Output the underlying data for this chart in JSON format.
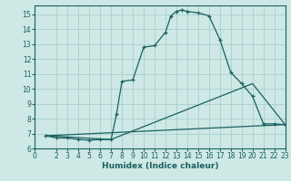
{
  "title": "",
  "xlabel": "Humidex (Indice chaleur)",
  "bg_color": "#cde8e5",
  "grid_color": "#a8d0cd",
  "line_color": "#1a6060",
  "xlim": [
    0,
    23
  ],
  "ylim": [
    6,
    15.6
  ],
  "xticks": [
    0,
    2,
    3,
    4,
    5,
    6,
    7,
    8,
    9,
    10,
    11,
    12,
    13,
    14,
    15,
    16,
    17,
    18,
    19,
    20,
    21,
    22,
    23
  ],
  "yticks": [
    6,
    7,
    8,
    9,
    10,
    11,
    12,
    13,
    14,
    15
  ],
  "line1_x": [
    1,
    2,
    3,
    4,
    5,
    6,
    7,
    7.5,
    8,
    9,
    10,
    11,
    12,
    12.5,
    13,
    13.5,
    14,
    15,
    16,
    17,
    18,
    19,
    20,
    21,
    22,
    23
  ],
  "line1_y": [
    6.85,
    6.7,
    6.7,
    6.6,
    6.55,
    6.6,
    6.6,
    8.3,
    10.5,
    10.6,
    12.8,
    12.9,
    13.8,
    14.9,
    15.2,
    15.3,
    15.2,
    15.1,
    14.9,
    13.3,
    11.1,
    10.35,
    9.5,
    7.65,
    7.65,
    7.6
  ],
  "line2_x": [
    1,
    7,
    20,
    23
  ],
  "line2_y": [
    6.85,
    6.6,
    10.35,
    7.6
  ],
  "line3_x": [
    1,
    23
  ],
  "line3_y": [
    6.85,
    7.6
  ]
}
